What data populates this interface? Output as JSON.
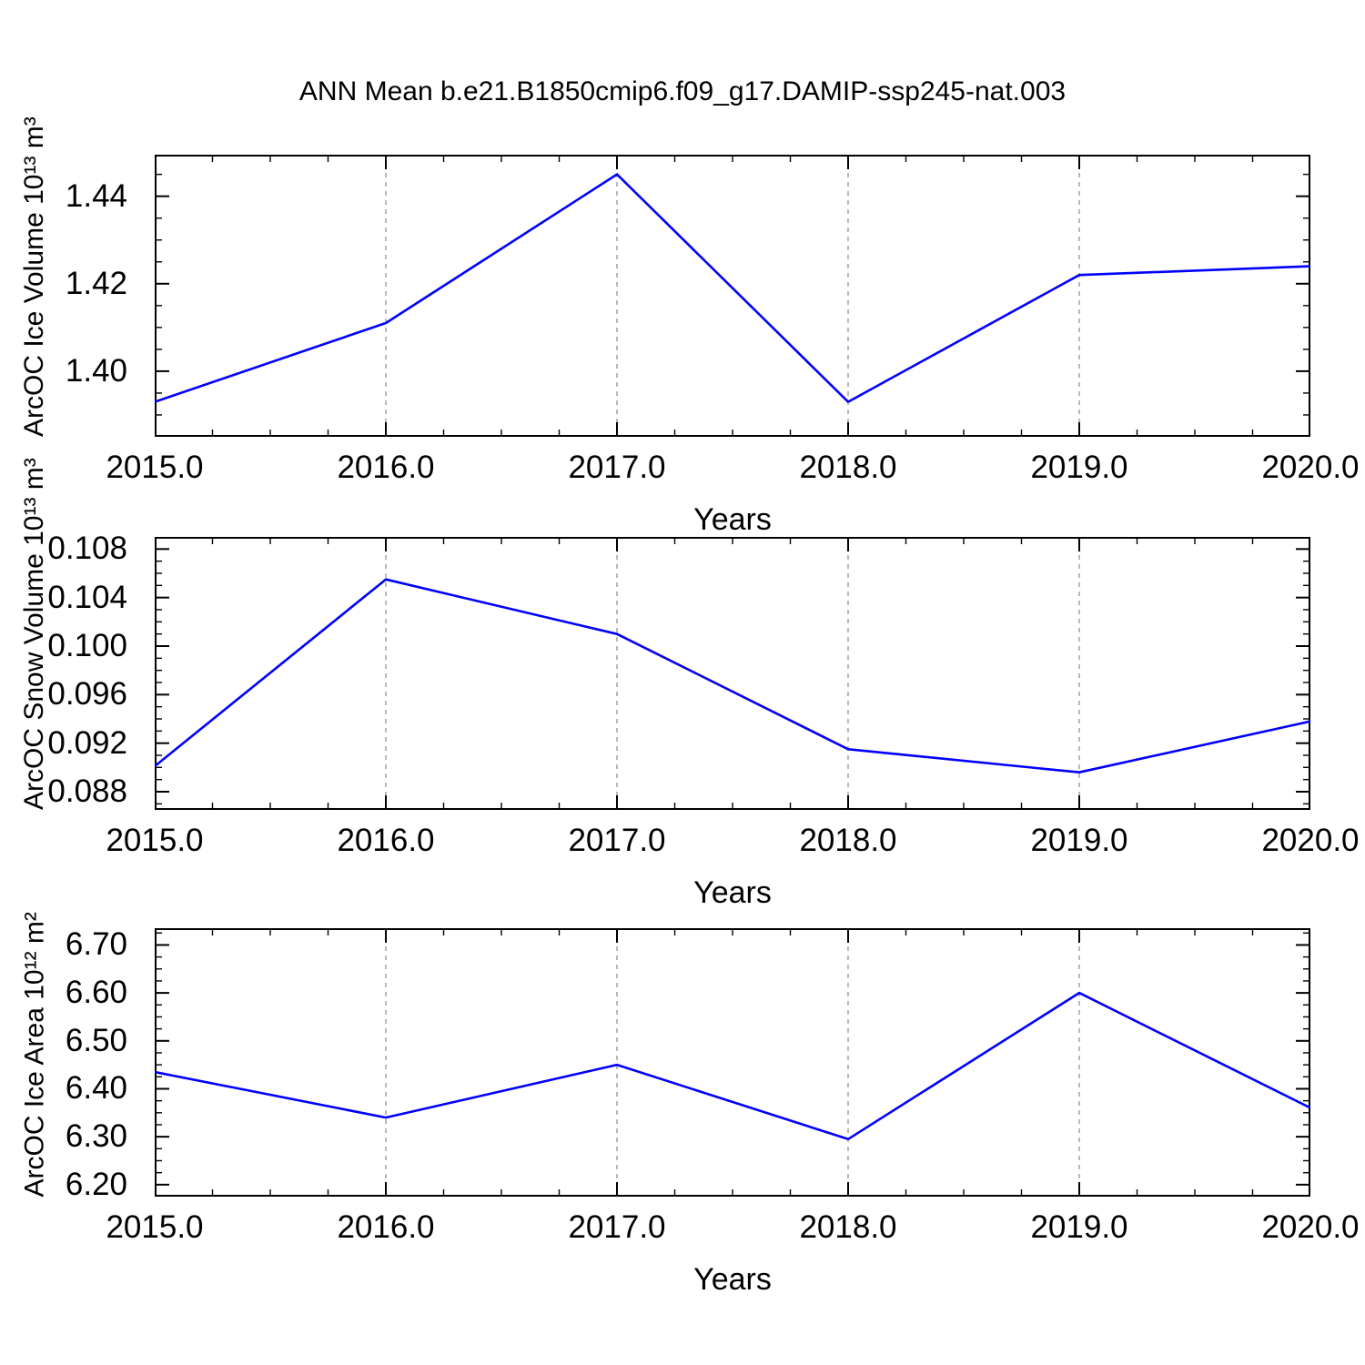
{
  "title": "ANN Mean b.e21.B1850cmip6.f09_g17.DAMIP-ssp245-nat.003",
  "line_color": "#0000ff",
  "grid_color": "#8a8a8a",
  "chart_data": [
    {
      "type": "line",
      "ylabel": "ArcOC Ice Volume 10¹³ m³",
      "xlabel": "Years",
      "x": [
        2015,
        2016,
        2017,
        2018,
        2019,
        2020
      ],
      "series": [
        {
          "name": "ArcOC Ice Volume",
          "values": [
            1.393,
            1.411,
            1.445,
            1.393,
            1.422,
            1.424
          ]
        }
      ],
      "xlim": [
        2015,
        2020
      ],
      "ylim": [
        1.385,
        1.4495
      ],
      "xticks": [
        2015,
        2016,
        2017,
        2018,
        2019,
        2020
      ],
      "xtick_labels": [
        "2015.0",
        "2016.0",
        "2017.0",
        "2018.0",
        "2019.0",
        "2020.0"
      ],
      "yticks": [
        1.4,
        1.42,
        1.44
      ],
      "ytick_labels": [
        "1.40",
        "1.42",
        "1.44"
      ],
      "x_minor_step": 0.25,
      "y_minor_step": 0.005,
      "grid": "vertical-dashed-at-interior-xticks",
      "legend": "none"
    },
    {
      "type": "line",
      "ylabel": "ArcOC Snow Volume 10¹³ m³",
      "xlabel": "Years",
      "x": [
        2015,
        2016,
        2017,
        2018,
        2019,
        2020
      ],
      "series": [
        {
          "name": "ArcOC Snow Volume",
          "values": [
            0.0901,
            0.1055,
            0.101,
            0.0915,
            0.0896,
            0.0938
          ]
        }
      ],
      "xlim": [
        2015,
        2020
      ],
      "ylim": [
        0.0865,
        0.109
      ],
      "xticks": [
        2015,
        2016,
        2017,
        2018,
        2019,
        2020
      ],
      "xtick_labels": [
        "2015.0",
        "2016.0",
        "2017.0",
        "2018.0",
        "2019.0",
        "2020.0"
      ],
      "yticks": [
        0.088,
        0.092,
        0.096,
        0.1,
        0.104,
        0.108
      ],
      "ytick_labels": [
        "0.088",
        "0.092",
        "0.096",
        "0.100",
        "0.104",
        "0.108"
      ],
      "x_minor_step": 0.25,
      "y_minor_step": 0.001,
      "grid": "vertical-dashed-at-interior-xticks",
      "legend": "none"
    },
    {
      "type": "line",
      "ylabel": "ArcOC Ice Area 10¹² m²",
      "xlabel": "Years",
      "x": [
        2015,
        2016,
        2017,
        2018,
        2019,
        2020
      ],
      "series": [
        {
          "name": "ArcOC Ice Area",
          "values": [
            6.435,
            6.34,
            6.45,
            6.295,
            6.6,
            6.36
          ]
        }
      ],
      "xlim": [
        2015,
        2020
      ],
      "ylim": [
        6.175,
        6.735
      ],
      "xticks": [
        2015,
        2016,
        2017,
        2018,
        2019,
        2020
      ],
      "xtick_labels": [
        "2015.0",
        "2016.0",
        "2017.0",
        "2018.0",
        "2019.0",
        "2020.0"
      ],
      "yticks": [
        6.2,
        6.3,
        6.4,
        6.5,
        6.6,
        6.7
      ],
      "ytick_labels": [
        "6.20",
        "6.30",
        "6.40",
        "6.50",
        "6.60",
        "6.70"
      ],
      "x_minor_step": 0.25,
      "y_minor_step": 0.025,
      "grid": "vertical-dashed-at-interior-xticks",
      "legend": "none"
    }
  ]
}
